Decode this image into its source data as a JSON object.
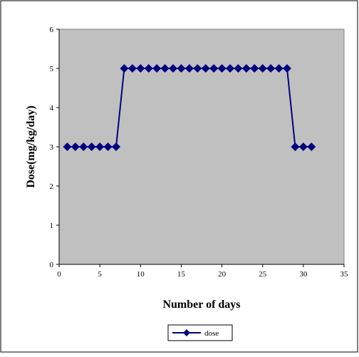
{
  "chart_data": {
    "type": "line",
    "title": "",
    "xlabel": "Number of days",
    "ylabel": "Dose(mg/kg/day)",
    "xlim": [
      0,
      35
    ],
    "ylim": [
      0,
      6
    ],
    "x_ticks": [
      0,
      5,
      10,
      15,
      20,
      25,
      30,
      35
    ],
    "y_ticks": [
      0,
      1,
      2,
      3,
      4,
      5,
      6
    ],
    "grid": false,
    "plot_background": "#C0C0C0",
    "legend_position": "bottom",
    "series": [
      {
        "name": "dose",
        "color": "#000080",
        "marker": "diamond",
        "x": [
          1,
          2,
          3,
          4,
          5,
          6,
          7,
          8,
          9,
          10,
          11,
          12,
          13,
          14,
          15,
          16,
          17,
          18,
          19,
          20,
          21,
          22,
          23,
          24,
          25,
          26,
          27,
          28,
          29,
          30,
          31
        ],
        "values": [
          3,
          3,
          3,
          3,
          3,
          3,
          3,
          5,
          5,
          5,
          5,
          5,
          5,
          5,
          5,
          5,
          5,
          5,
          5,
          5,
          5,
          5,
          5,
          5,
          5,
          5,
          5,
          5,
          3,
          3,
          3
        ]
      }
    ]
  }
}
